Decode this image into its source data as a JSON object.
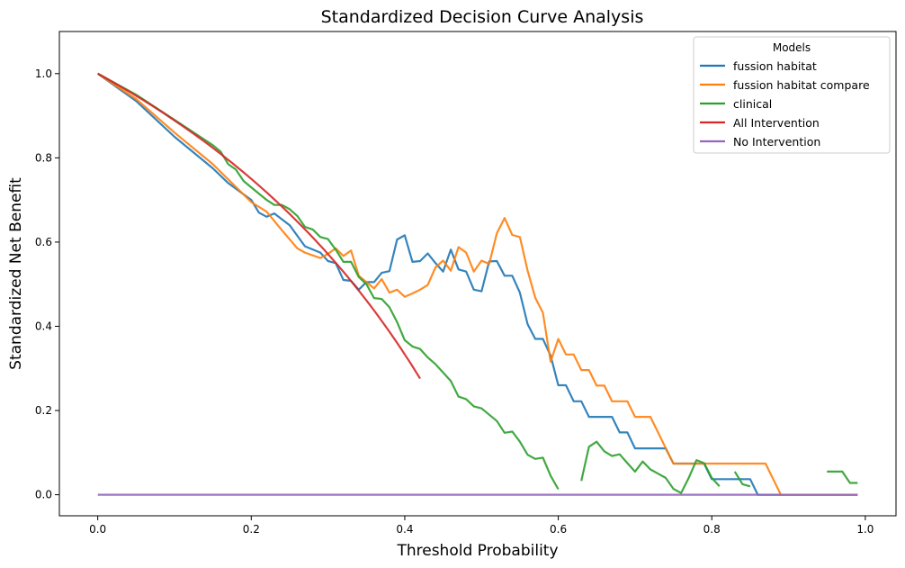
{
  "chart_data": {
    "type": "line",
    "title": "Standardized Decision Curve Analysis",
    "xlabel": "Threshold Probability",
    "ylabel": "Standardized Net Benefit",
    "xlim": [
      -0.05,
      1.04
    ],
    "ylim": [
      -0.05,
      1.1
    ],
    "xticks": [
      "0.0",
      "0.2",
      "0.4",
      "0.6",
      "0.8",
      "1.0"
    ],
    "yticks": [
      "0.0",
      "0.2",
      "0.4",
      "0.6",
      "0.8",
      "1.0"
    ],
    "grid": false,
    "legend": {
      "title": "Models",
      "position": "top-right"
    },
    "series": [
      {
        "name": "fussion habitat",
        "color": "#1f77b4",
        "points": [
          [
            0.0,
            1.0
          ],
          [
            0.05,
            0.935
          ],
          [
            0.1,
            0.85
          ],
          [
            0.15,
            0.775
          ],
          [
            0.17,
            0.74
          ],
          [
            0.2,
            0.7
          ],
          [
            0.21,
            0.67
          ],
          [
            0.22,
            0.66
          ],
          [
            0.23,
            0.668
          ],
          [
            0.25,
            0.64
          ],
          [
            0.27,
            0.59
          ],
          [
            0.29,
            0.575
          ],
          [
            0.3,
            0.555
          ],
          [
            0.31,
            0.55
          ],
          [
            0.32,
            0.51
          ],
          [
            0.33,
            0.508
          ],
          [
            0.34,
            0.487
          ],
          [
            0.35,
            0.505
          ],
          [
            0.36,
            0.505
          ],
          [
            0.37,
            0.527
          ],
          [
            0.38,
            0.531
          ],
          [
            0.39,
            0.606
          ],
          [
            0.4,
            0.616
          ],
          [
            0.41,
            0.553
          ],
          [
            0.42,
            0.555
          ],
          [
            0.43,
            0.573
          ],
          [
            0.44,
            0.55
          ],
          [
            0.45,
            0.53
          ],
          [
            0.46,
            0.582
          ],
          [
            0.47,
            0.535
          ],
          [
            0.48,
            0.53
          ],
          [
            0.49,
            0.487
          ],
          [
            0.5,
            0.483
          ],
          [
            0.51,
            0.554
          ],
          [
            0.52,
            0.555
          ],
          [
            0.53,
            0.52
          ],
          [
            0.54,
            0.52
          ],
          [
            0.55,
            0.48
          ],
          [
            0.56,
            0.405
          ],
          [
            0.57,
            0.37
          ],
          [
            0.58,
            0.37
          ],
          [
            0.59,
            0.33
          ],
          [
            0.6,
            0.26
          ],
          [
            0.61,
            0.26
          ],
          [
            0.62,
            0.222
          ],
          [
            0.63,
            0.222
          ],
          [
            0.64,
            0.185
          ],
          [
            0.67,
            0.185
          ],
          [
            0.68,
            0.148
          ],
          [
            0.69,
            0.148
          ],
          [
            0.7,
            0.11
          ],
          [
            0.74,
            0.11
          ],
          [
            0.75,
            0.074
          ],
          [
            0.79,
            0.074
          ],
          [
            0.8,
            0.037
          ],
          [
            0.85,
            0.037
          ],
          [
            0.86,
            0.0
          ],
          [
            0.99,
            0.0
          ]
        ]
      },
      {
        "name": "fussion habitat compare",
        "color": "#ff7f0e",
        "points": [
          [
            0.0,
            1.0
          ],
          [
            0.05,
            0.94
          ],
          [
            0.1,
            0.86
          ],
          [
            0.15,
            0.785
          ],
          [
            0.2,
            0.695
          ],
          [
            0.22,
            0.672
          ],
          [
            0.24,
            0.628
          ],
          [
            0.26,
            0.585
          ],
          [
            0.27,
            0.575
          ],
          [
            0.29,
            0.562
          ],
          [
            0.3,
            0.572
          ],
          [
            0.31,
            0.585
          ],
          [
            0.32,
            0.567
          ],
          [
            0.33,
            0.58
          ],
          [
            0.34,
            0.52
          ],
          [
            0.35,
            0.505
          ],
          [
            0.36,
            0.49
          ],
          [
            0.37,
            0.512
          ],
          [
            0.38,
            0.48
          ],
          [
            0.39,
            0.487
          ],
          [
            0.4,
            0.47
          ],
          [
            0.41,
            0.478
          ],
          [
            0.42,
            0.487
          ],
          [
            0.43,
            0.498
          ],
          [
            0.44,
            0.54
          ],
          [
            0.45,
            0.556
          ],
          [
            0.46,
            0.532
          ],
          [
            0.47,
            0.588
          ],
          [
            0.48,
            0.575
          ],
          [
            0.49,
            0.53
          ],
          [
            0.5,
            0.556
          ],
          [
            0.51,
            0.548
          ],
          [
            0.52,
            0.621
          ],
          [
            0.53,
            0.657
          ],
          [
            0.54,
            0.617
          ],
          [
            0.55,
            0.612
          ],
          [
            0.56,
            0.532
          ],
          [
            0.57,
            0.468
          ],
          [
            0.58,
            0.432
          ],
          [
            0.59,
            0.316
          ],
          [
            0.6,
            0.37
          ],
          [
            0.61,
            0.333
          ],
          [
            0.62,
            0.333
          ],
          [
            0.63,
            0.296
          ],
          [
            0.64,
            0.296
          ],
          [
            0.65,
            0.259
          ],
          [
            0.66,
            0.259
          ],
          [
            0.67,
            0.222
          ],
          [
            0.69,
            0.222
          ],
          [
            0.7,
            0.185
          ],
          [
            0.72,
            0.185
          ],
          [
            0.73,
            0.148
          ],
          [
            0.74,
            0.111
          ],
          [
            0.75,
            0.074
          ],
          [
            0.87,
            0.074
          ],
          [
            0.88,
            0.037
          ],
          [
            0.89,
            0.0
          ],
          [
            0.99,
            0.0
          ]
        ]
      },
      {
        "name": "clinical",
        "color": "#2ca02c",
        "segments": [
          [
            [
              0.0,
              1.0
            ],
            [
              0.05,
              0.95
            ],
            [
              0.1,
              0.89
            ],
            [
              0.15,
              0.83
            ],
            [
              0.16,
              0.815
            ],
            [
              0.17,
              0.785
            ],
            [
              0.18,
              0.772
            ],
            [
              0.19,
              0.745
            ],
            [
              0.2,
              0.73
            ],
            [
              0.21,
              0.715
            ],
            [
              0.22,
              0.7
            ],
            [
              0.23,
              0.688
            ],
            [
              0.24,
              0.688
            ],
            [
              0.25,
              0.678
            ],
            [
              0.26,
              0.662
            ],
            [
              0.27,
              0.636
            ],
            [
              0.28,
              0.63
            ],
            [
              0.29,
              0.612
            ],
            [
              0.3,
              0.607
            ],
            [
              0.31,
              0.582
            ],
            [
              0.32,
              0.553
            ],
            [
              0.33,
              0.553
            ],
            [
              0.34,
              0.517
            ],
            [
              0.35,
              0.5
            ],
            [
              0.36,
              0.467
            ],
            [
              0.37,
              0.465
            ],
            [
              0.38,
              0.445
            ],
            [
              0.39,
              0.41
            ],
            [
              0.4,
              0.367
            ],
            [
              0.41,
              0.352
            ],
            [
              0.42,
              0.346
            ],
            [
              0.43,
              0.326
            ],
            [
              0.44,
              0.31
            ],
            [
              0.45,
              0.29
            ],
            [
              0.46,
              0.27
            ],
            [
              0.47,
              0.233
            ],
            [
              0.48,
              0.227
            ],
            [
              0.49,
              0.21
            ],
            [
              0.5,
              0.205
            ],
            [
              0.51,
              0.19
            ],
            [
              0.52,
              0.175
            ],
            [
              0.53,
              0.147
            ],
            [
              0.54,
              0.15
            ],
            [
              0.55,
              0.126
            ],
            [
              0.56,
              0.095
            ],
            [
              0.57,
              0.085
            ],
            [
              0.58,
              0.088
            ],
            [
              0.59,
              0.045
            ],
            [
              0.6,
              0.013
            ]
          ],
          [
            [
              0.63,
              0.033
            ],
            [
              0.64,
              0.114
            ],
            [
              0.65,
              0.126
            ],
            [
              0.66,
              0.103
            ],
            [
              0.67,
              0.092
            ],
            [
              0.68,
              0.096
            ],
            [
              0.69,
              0.075
            ],
            [
              0.7,
              0.055
            ],
            [
              0.71,
              0.079
            ],
            [
              0.72,
              0.06
            ],
            [
              0.73,
              0.05
            ],
            [
              0.74,
              0.04
            ],
            [
              0.75,
              0.014
            ],
            [
              0.76,
              0.004
            ],
            [
              0.77,
              0.04
            ],
            [
              0.78,
              0.082
            ],
            [
              0.79,
              0.075
            ],
            [
              0.8,
              0.04
            ],
            [
              0.81,
              0.02
            ]
          ],
          [
            [
              0.83,
              0.055
            ],
            [
              0.84,
              0.025
            ],
            [
              0.85,
              0.02
            ]
          ],
          [
            [
              0.95,
              0.055
            ],
            [
              0.97,
              0.055
            ],
            [
              0.98,
              0.028
            ],
            [
              0.99,
              0.028
            ]
          ]
        ]
      },
      {
        "name": "All Intervention",
        "color": "#d62728",
        "curve": "all",
        "xmin": 0.0,
        "xmax": 0.42
      },
      {
        "name": "No Intervention",
        "color": "#9467bd",
        "points": [
          [
            0.0,
            0.0
          ],
          [
            0.99,
            0.0
          ]
        ]
      }
    ]
  }
}
